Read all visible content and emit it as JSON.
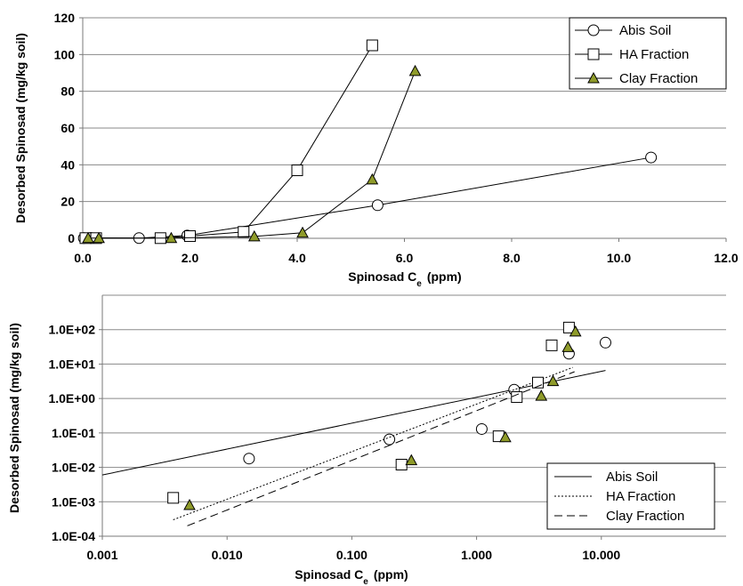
{
  "chart_data": [
    {
      "type": "line",
      "xlabel_main": "Spinosad C",
      "xlabel_sub": "e",
      "xlabel_unit": "(ppm)",
      "ylabel": "Desorbed Spinosad (mg/kg soil)",
      "xlim": [
        0,
        12
      ],
      "ylim": [
        0,
        120
      ],
      "xticks": [
        0,
        2,
        4,
        6,
        8,
        10,
        12
      ],
      "xtick_labels": [
        "0.0",
        "2.0",
        "4.0",
        "6.0",
        "8.0",
        "10.0",
        "12.0"
      ],
      "yticks": [
        0,
        20,
        40,
        60,
        80,
        100,
        120
      ],
      "ytick_labels": [
        "0",
        "20",
        "40",
        "60",
        "80",
        "100",
        "120"
      ],
      "grid": "horizontal",
      "legend_position": "top-right",
      "series": [
        {
          "name": "Abis Soil",
          "marker": "circle",
          "x": [
            0.02,
            0.15,
            1.05,
            1.95,
            5.5,
            10.6
          ],
          "y": [
            0.1,
            0.2,
            0.1,
            1.5,
            18,
            44
          ]
        },
        {
          "name": "HA Fraction",
          "marker": "square",
          "x": [
            0.05,
            0.25,
            1.45,
            2.0,
            3.0,
            4.0,
            5.4
          ],
          "y": [
            0.1,
            0.1,
            0.1,
            1.2,
            3.5,
            37,
            105
          ]
        },
        {
          "name": "Clay Fraction",
          "marker": "triangle",
          "x": [
            0.1,
            0.3,
            1.65,
            3.2,
            4.1,
            5.4,
            6.2
          ],
          "y": [
            0.1,
            0.1,
            0.1,
            1.0,
            3.0,
            32,
            91
          ]
        }
      ]
    },
    {
      "type": "scatter",
      "xlabel_main": "Spinosad C",
      "xlabel_sub": "e",
      "xlabel_unit": "(ppm)",
      "ylabel": "Desorbed Spinosad (mg/kg soil)",
      "xscale": "log",
      "yscale": "log",
      "xlim": [
        0.001,
        100
      ],
      "ylim": [
        0.0001,
        1000
      ],
      "xticks": [
        0.001,
        0.01,
        0.1,
        1,
        10
      ],
      "xtick_labels": [
        "0.001",
        "0.010",
        "0.100",
        "1.000",
        "10.000"
      ],
      "yticks": [
        0.0001,
        0.001,
        0.01,
        0.1,
        1,
        10,
        100
      ],
      "ytick_labels": [
        "1.0E-04",
        "1.0E-03",
        "1.0E-02",
        "1.0E-01",
        "1.0E+00",
        "1.0E+01",
        "1.0E+02"
      ],
      "grid": "horizontal",
      "legend_position": "bottom-right",
      "series": [
        {
          "name": "Abis Soil",
          "marker": "circle",
          "line_style": "solid",
          "x": [
            0.015,
            0.2,
            1.1,
            2.0,
            5.5,
            10.8
          ],
          "y": [
            0.018,
            0.065,
            0.13,
            1.8,
            20,
            42
          ],
          "fit": {
            "x": [
              0.001,
              10.8
            ],
            "y": [
              0.006,
              6.5
            ]
          }
        },
        {
          "name": "HA Fraction",
          "marker": "square",
          "line_style": "dotted",
          "x": [
            0.0037,
            0.25,
            1.5,
            2.1,
            3.1,
            4.0,
            5.5
          ],
          "y": [
            0.0013,
            0.012,
            0.08,
            1.1,
            2.9,
            35,
            115
          ],
          "fit": {
            "x": [
              0.0037,
              5.9
            ],
            "y": [
              0.0003,
              8.0
            ]
          }
        },
        {
          "name": "Clay Fraction",
          "marker": "triangle",
          "line_style": "dashed",
          "x": [
            0.005,
            0.3,
            1.7,
            3.3,
            4.1,
            5.4,
            6.2
          ],
          "y": [
            0.0008,
            0.016,
            0.075,
            1.2,
            3.2,
            31,
            88
          ],
          "fit": {
            "x": [
              0.0048,
              6.1
            ],
            "y": [
              0.0002,
              6.0
            ]
          }
        }
      ]
    }
  ]
}
